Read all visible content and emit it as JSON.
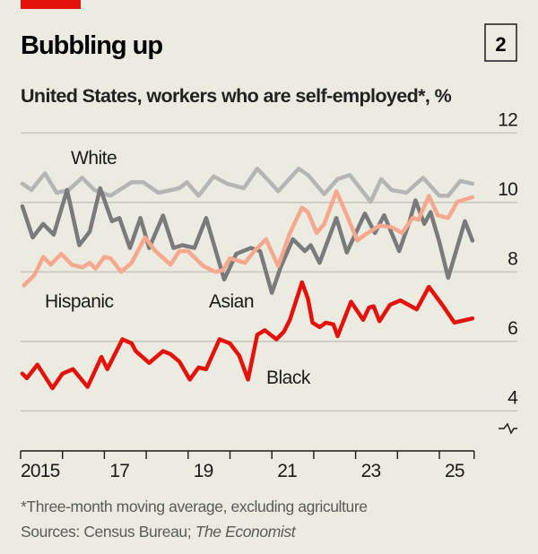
{
  "header": {
    "title": "Bubbling up",
    "chart_number": "2",
    "subtitle": "United States, workers who are self-employed*, %"
  },
  "footer": {
    "note": "*Three-month moving average, excluding agriculture",
    "sources_prefix": "Sources: Census Bureau; ",
    "sources_italic": "The Economist"
  },
  "colors": {
    "background": "#ecebe1",
    "accent_bar": "#e3120b",
    "White": "#b5b5b5",
    "Asian": "#7a7a7c",
    "Hispanic": "#f6a88e",
    "Black": "#e3120b",
    "grid": "#c9c8be"
  },
  "chart_data": {
    "type": "line",
    "title": "Bubbling up",
    "subtitle": "United States, workers who are self-employed*, %",
    "xlabel": "",
    "ylabel": "",
    "xlim": [
      2015,
      2025.83
    ],
    "ylim": [
      4,
      12
    ],
    "y_ticks": [
      "4",
      "6",
      "8",
      "10",
      "12"
    ],
    "y_tick_values": [
      4,
      6,
      8,
      10,
      12
    ],
    "y_axis_break": true,
    "x_ticks": [
      "2015",
      "17",
      "19",
      "21",
      "23",
      "25"
    ],
    "x_tick_values": [
      2015,
      2017,
      2019,
      2021,
      2023,
      2025
    ],
    "grid": true,
    "series": [
      {
        "name": "White",
        "points": [
          [
            2015.04,
            10.54
          ],
          [
            2015.26,
            10.36
          ],
          [
            2015.58,
            10.84
          ],
          [
            2015.86,
            10.28
          ],
          [
            2016.15,
            10.36
          ],
          [
            2016.47,
            10.71
          ],
          [
            2016.76,
            10.36
          ],
          [
            2017.14,
            10.19
          ],
          [
            2017.65,
            10.58
          ],
          [
            2017.93,
            10.58
          ],
          [
            2018.29,
            10.28
          ],
          [
            2018.79,
            10.41
          ],
          [
            2018.97,
            10.58
          ],
          [
            2019.25,
            10.19
          ],
          [
            2019.61,
            10.75
          ],
          [
            2019.93,
            10.54
          ],
          [
            2020.33,
            10.41
          ],
          [
            2020.65,
            10.97
          ],
          [
            2020.93,
            10.62
          ],
          [
            2021.15,
            10.32
          ],
          [
            2021.64,
            10.97
          ],
          [
            2021.86,
            10.79
          ],
          [
            2022.25,
            10.24
          ],
          [
            2022.57,
            10.67
          ],
          [
            2022.86,
            10.79
          ],
          [
            2023.36,
            10.02
          ],
          [
            2023.61,
            10.67
          ],
          [
            2023.86,
            10.36
          ],
          [
            2024.21,
            10.28
          ],
          [
            2024.61,
            10.71
          ],
          [
            2025.0,
            10.19
          ],
          [
            2025.21,
            10.19
          ],
          [
            2025.5,
            10.62
          ],
          [
            2025.79,
            10.54
          ]
        ]
      },
      {
        "name": "Asian",
        "points": [
          [
            2015.04,
            9.89
          ],
          [
            2015.29,
            8.99
          ],
          [
            2015.54,
            9.38
          ],
          [
            2015.79,
            9.07
          ],
          [
            2016.11,
            10.36
          ],
          [
            2016.4,
            8.77
          ],
          [
            2016.65,
            9.16
          ],
          [
            2016.9,
            10.41
          ],
          [
            2017.18,
            9.46
          ],
          [
            2017.36,
            9.55
          ],
          [
            2017.61,
            8.69
          ],
          [
            2017.86,
            9.55
          ],
          [
            2018.07,
            8.69
          ],
          [
            2018.4,
            9.62
          ],
          [
            2018.65,
            8.69
          ],
          [
            2018.86,
            8.77
          ],
          [
            2019.15,
            8.69
          ],
          [
            2019.43,
            9.55
          ],
          [
            2019.86,
            7.78
          ],
          [
            2020.15,
            8.52
          ],
          [
            2020.5,
            8.69
          ],
          [
            2020.72,
            8.6
          ],
          [
            2021.0,
            7.4
          ],
          [
            2021.22,
            8.17
          ],
          [
            2021.5,
            8.94
          ],
          [
            2021.79,
            8.6
          ],
          [
            2021.93,
            8.77
          ],
          [
            2022.14,
            8.26
          ],
          [
            2022.54,
            9.55
          ],
          [
            2022.79,
            8.56
          ],
          [
            2023.22,
            9.68
          ],
          [
            2023.46,
            9.12
          ],
          [
            2023.68,
            9.63
          ],
          [
            2024.04,
            8.6
          ],
          [
            2024.29,
            9.46
          ],
          [
            2024.43,
            10.06
          ],
          [
            2024.64,
            9.38
          ],
          [
            2024.79,
            9.72
          ],
          [
            2025.0,
            8.86
          ],
          [
            2025.21,
            7.83
          ],
          [
            2025.61,
            9.46
          ],
          [
            2025.79,
            8.9
          ]
        ]
      },
      {
        "name": "Hispanic",
        "points": [
          [
            2015.08,
            7.61
          ],
          [
            2015.33,
            7.91
          ],
          [
            2015.54,
            8.43
          ],
          [
            2015.72,
            8.21
          ],
          [
            2015.97,
            8.52
          ],
          [
            2016.22,
            8.21
          ],
          [
            2016.47,
            8.13
          ],
          [
            2016.65,
            8.26
          ],
          [
            2016.79,
            8.09
          ],
          [
            2017.0,
            8.43
          ],
          [
            2017.15,
            8.39
          ],
          [
            2017.4,
            8.0
          ],
          [
            2017.65,
            8.26
          ],
          [
            2017.97,
            8.99
          ],
          [
            2018.22,
            8.6
          ],
          [
            2018.58,
            8.21
          ],
          [
            2018.79,
            8.6
          ],
          [
            2019.0,
            8.6
          ],
          [
            2019.36,
            8.17
          ],
          [
            2019.65,
            8.0
          ],
          [
            2019.83,
            8.05
          ],
          [
            2020.0,
            8.39
          ],
          [
            2020.36,
            8.26
          ],
          [
            2020.58,
            8.6
          ],
          [
            2020.86,
            8.94
          ],
          [
            2021.15,
            8.17
          ],
          [
            2021.43,
            9.12
          ],
          [
            2021.72,
            9.85
          ],
          [
            2021.86,
            9.72
          ],
          [
            2022.07,
            9.12
          ],
          [
            2022.25,
            9.38
          ],
          [
            2022.54,
            10.32
          ],
          [
            2022.79,
            9.63
          ],
          [
            2023.04,
            8.9
          ],
          [
            2023.22,
            9.07
          ],
          [
            2023.57,
            9.33
          ],
          [
            2023.86,
            9.29
          ],
          [
            2024.11,
            9.12
          ],
          [
            2024.36,
            9.55
          ],
          [
            2024.5,
            9.5
          ],
          [
            2024.75,
            10.19
          ],
          [
            2024.96,
            9.63
          ],
          [
            2025.21,
            9.55
          ],
          [
            2025.43,
            10.02
          ],
          [
            2025.79,
            10.15
          ]
        ]
      },
      {
        "name": "Black",
        "points": [
          [
            2015.04,
            5.07
          ],
          [
            2015.15,
            4.94
          ],
          [
            2015.4,
            5.33
          ],
          [
            2015.76,
            4.65
          ],
          [
            2016.0,
            5.07
          ],
          [
            2016.25,
            5.2
          ],
          [
            2016.6,
            4.69
          ],
          [
            2016.93,
            5.55
          ],
          [
            2017.07,
            5.2
          ],
          [
            2017.43,
            6.06
          ],
          [
            2017.65,
            5.94
          ],
          [
            2017.75,
            5.72
          ],
          [
            2018.07,
            5.38
          ],
          [
            2018.4,
            5.72
          ],
          [
            2018.58,
            5.63
          ],
          [
            2018.79,
            5.42
          ],
          [
            2019.04,
            4.9
          ],
          [
            2019.25,
            5.25
          ],
          [
            2019.43,
            5.2
          ],
          [
            2019.75,
            6.06
          ],
          [
            2020.0,
            5.94
          ],
          [
            2020.22,
            5.59
          ],
          [
            2020.43,
            4.9
          ],
          [
            2020.65,
            6.19
          ],
          [
            2020.83,
            6.32
          ],
          [
            2021.11,
            6.06
          ],
          [
            2021.29,
            6.28
          ],
          [
            2021.43,
            6.62
          ],
          [
            2021.72,
            7.7
          ],
          [
            2021.86,
            7.23
          ],
          [
            2021.97,
            6.54
          ],
          [
            2022.14,
            6.41
          ],
          [
            2022.29,
            6.54
          ],
          [
            2022.47,
            6.49
          ],
          [
            2022.57,
            6.15
          ],
          [
            2022.89,
            7.14
          ],
          [
            2023.18,
            6.62
          ],
          [
            2023.32,
            6.97
          ],
          [
            2023.43,
            7.01
          ],
          [
            2023.57,
            6.58
          ],
          [
            2023.82,
            7.05
          ],
          [
            2024.07,
            7.18
          ],
          [
            2024.46,
            6.92
          ],
          [
            2024.75,
            7.57
          ],
          [
            2025.07,
            7.05
          ],
          [
            2025.36,
            6.54
          ],
          [
            2025.64,
            6.62
          ],
          [
            2025.79,
            6.66
          ]
        ]
      }
    ],
    "series_labels": [
      "White",
      "Hispanic",
      "Asian",
      "Black"
    ]
  }
}
